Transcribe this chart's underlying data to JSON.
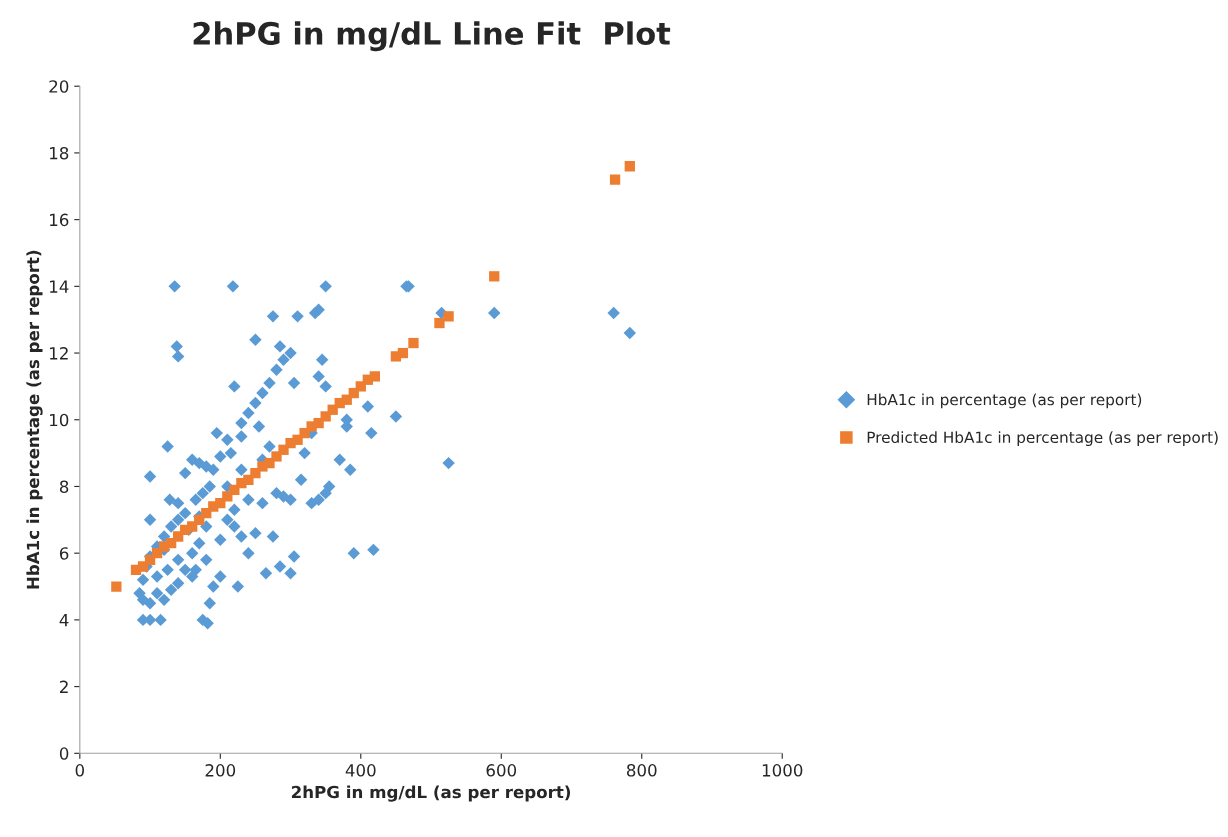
{
  "chart_data": {
    "type": "scatter",
    "title": "2hPG in mg/dL Line Fit  Plot",
    "xlabel": "2hPG in mg/dL (as per report)",
    "ylabel": "HbA1c in percentage (as per report)",
    "xlim": [
      0,
      1000
    ],
    "xticks": [
      0,
      200,
      400,
      600,
      800,
      1000
    ],
    "ylim": [
      0,
      20
    ],
    "yticks": [
      0,
      2,
      4,
      6,
      8,
      10,
      12,
      14,
      16,
      18,
      20
    ],
    "grid": false,
    "legend": "right",
    "series": [
      {
        "name": "HbA1c in percentage (as per report)",
        "color": "#5b9bd5",
        "marker": "diamond",
        "x": [
          135,
          218,
          350,
          465,
          468,
          340,
          335,
          310,
          275,
          515,
          590,
          760,
          783,
          138,
          140,
          250,
          285,
          345,
          220,
          305,
          340,
          350,
          410,
          450,
          415,
          380,
          380,
          370,
          385,
          390,
          418,
          525,
          355,
          340,
          350,
          330,
          305,
          300,
          285,
          265,
          230,
          225,
          125,
          100,
          150,
          100,
          128,
          140,
          160,
          170,
          180,
          195,
          210,
          230,
          240,
          250,
          260,
          270,
          280,
          290,
          300,
          255,
          230,
          215,
          200,
          190,
          185,
          175,
          165,
          150,
          140,
          130,
          120,
          110,
          100,
          95,
          90,
          85,
          90,
          100,
          110,
          120,
          130,
          140,
          160,
          90,
          100,
          115,
          175,
          182,
          185,
          190,
          200,
          150,
          160,
          170,
          180,
          210,
          220,
          240,
          260,
          280,
          290,
          300,
          275,
          250,
          240,
          220,
          200,
          180,
          165,
          140,
          125,
          315,
          320,
          330,
          260,
          270,
          210,
          230,
          170,
          155,
          120,
          110
        ],
        "values": [
          14.0,
          14.0,
          14.0,
          14.0,
          14.0,
          13.3,
          13.2,
          13.1,
          13.1,
          13.2,
          13.2,
          13.2,
          12.6,
          12.2,
          11.9,
          12.4,
          12.2,
          11.8,
          11.0,
          11.1,
          11.3,
          11.0,
          10.4,
          10.1,
          9.6,
          10.0,
          9.8,
          8.8,
          8.5,
          6.0,
          6.1,
          8.7,
          8.0,
          7.6,
          7.8,
          7.5,
          5.9,
          5.4,
          5.6,
          5.4,
          6.5,
          5.0,
          9.2,
          8.3,
          8.4,
          7.0,
          7.6,
          7.5,
          8.8,
          8.7,
          8.6,
          9.6,
          9.4,
          9.9,
          10.2,
          10.5,
          10.8,
          11.1,
          11.5,
          11.8,
          12.0,
          9.8,
          9.5,
          9.0,
          8.9,
          8.5,
          8.0,
          7.8,
          7.6,
          7.2,
          7.0,
          6.8,
          6.5,
          6.2,
          5.9,
          5.6,
          5.2,
          4.8,
          4.6,
          4.5,
          4.8,
          4.6,
          4.9,
          5.1,
          5.3,
          4.0,
          4.0,
          4.0,
          4.0,
          3.9,
          4.5,
          5.0,
          5.3,
          5.5,
          6.0,
          6.3,
          6.8,
          7.0,
          7.3,
          7.6,
          7.5,
          7.8,
          7.7,
          7.6,
          6.5,
          6.6,
          6.0,
          6.8,
          6.4,
          5.8,
          5.5,
          5.8,
          5.5,
          8.2,
          9.0,
          9.6,
          8.8,
          9.2,
          8.0,
          8.5,
          7.1,
          6.7,
          6.1,
          5.3
        ]
      },
      {
        "name": "Predicted HbA1c in percentage (as per report)",
        "color": "#ed7d31",
        "marker": "square",
        "x": [
          52,
          80,
          90,
          100,
          110,
          120,
          130,
          140,
          150,
          160,
          170,
          180,
          190,
          200,
          210,
          220,
          230,
          240,
          250,
          260,
          270,
          280,
          290,
          300,
          310,
          320,
          330,
          340,
          350,
          360,
          370,
          380,
          390,
          400,
          410,
          420,
          450,
          460,
          475,
          512,
          525,
          590,
          762,
          783
        ],
        "values": [
          5.0,
          5.5,
          5.6,
          5.8,
          6.0,
          6.2,
          6.3,
          6.5,
          6.7,
          6.8,
          7.0,
          7.2,
          7.4,
          7.5,
          7.7,
          7.9,
          8.1,
          8.2,
          8.4,
          8.6,
          8.7,
          8.9,
          9.1,
          9.3,
          9.4,
          9.6,
          9.8,
          9.9,
          10.1,
          10.3,
          10.5,
          10.6,
          10.8,
          11.0,
          11.2,
          11.3,
          11.9,
          12.0,
          12.3,
          12.9,
          13.1,
          14.3,
          17.2,
          17.6
        ]
      }
    ]
  }
}
